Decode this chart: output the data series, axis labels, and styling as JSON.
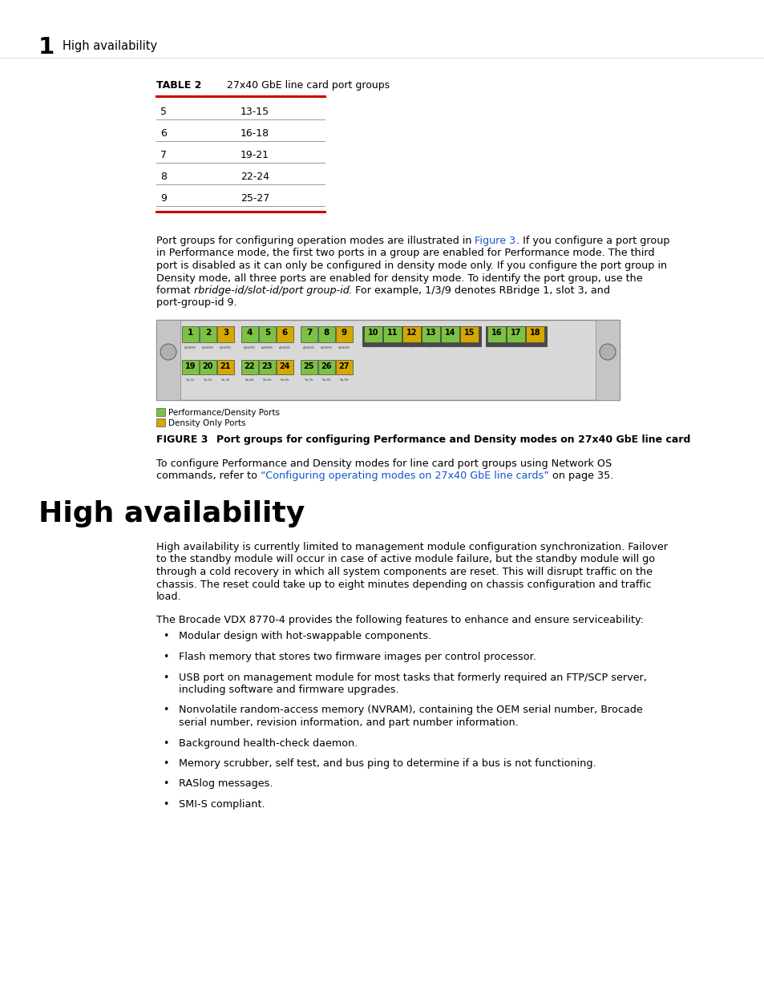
{
  "bg_color": "#ffffff",
  "chapter_number": "1",
  "chapter_title": "High availability",
  "table_label": "TABLE 2",
  "table_title": "27x40 GbE line card port groups",
  "table_rows": [
    [
      "5",
      "13-15"
    ],
    [
      "6",
      "16-18"
    ],
    [
      "7",
      "19-21"
    ],
    [
      "8",
      "22-24"
    ],
    [
      "9",
      "25-27"
    ]
  ],
  "green_color": "#7dc142",
  "yellow_color": "#d4a800",
  "legend1_text": "Performance/Density Ports",
  "legend2_text": "Density Only Ports",
  "figure_caption_label": "FIGURE 3",
  "figure_caption_text": "Port groups for configuring Performance and Density modes on 27x40 GbE line card",
  "section_title": "High availability",
  "bullet_items": [
    "Modular design with hot-swappable components.",
    "Flash memory that stores two firmware images per control processor.",
    "USB port on management module for most tasks that formerly required an FTP/SCP server,\nincluding software and firmware upgrades.",
    "Nonvolatile random-access memory (NVRAM), containing the OEM serial number, Brocade\nserial number, revision information, and part number information.",
    "Background health-check daemon.",
    "Memory scrubber, self test, and bus ping to determine if a bus is not functioning.",
    "RASlog messages.",
    "SMI-S compliant."
  ]
}
